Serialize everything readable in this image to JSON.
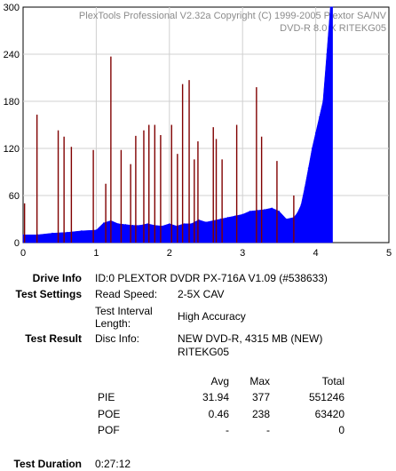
{
  "chart_data": {
    "type": "bar",
    "watermark": [
      "PlexTools Professional V2.32a Copyright (C) 1999-2005 Plextor SA/NV",
      "DVD-R   8.0 X   RITEKG05"
    ],
    "xlim": [
      0,
      5
    ],
    "ylim": [
      0,
      300
    ],
    "x_ticks": [
      "0",
      "1",
      "2",
      "3",
      "4",
      "5"
    ],
    "y_ticks": [
      "0",
      "60",
      "120",
      "180",
      "240",
      "300"
    ],
    "grid": true,
    "series": [
      {
        "color": "#0000ff",
        "x": [
          0.0,
          0.2,
          0.4,
          0.6,
          0.8,
          1.0,
          1.1,
          1.2,
          1.3,
          1.4,
          1.5,
          1.6,
          1.7,
          1.8,
          1.9,
          2.0,
          2.1,
          2.2,
          2.3,
          2.4,
          2.5,
          2.6,
          2.7,
          2.8,
          2.9,
          3.0,
          3.1,
          3.2,
          3.3,
          3.4,
          3.5,
          3.6,
          3.7,
          3.75,
          3.8,
          3.85,
          3.9,
          3.95,
          4.0,
          4.05,
          4.1,
          4.15,
          4.2,
          4.23
        ],
        "y": [
          10,
          10,
          12,
          13,
          15,
          16,
          25,
          28,
          24,
          23,
          22,
          22,
          24,
          22,
          21,
          24,
          21,
          24,
          24,
          29,
          26,
          28,
          30,
          32,
          34,
          36,
          40,
          41,
          42,
          44,
          40,
          30,
          32,
          38,
          48,
          70,
          95,
          120,
          140,
          160,
          180,
          240,
          300,
          300
        ]
      },
      {
        "color": "#800000",
        "x": [
          0.02,
          0.19,
          0.48,
          0.56,
          0.66,
          0.96,
          1.13,
          1.2,
          1.34,
          1.47,
          1.54,
          1.65,
          1.72,
          1.8,
          1.88,
          2.03,
          2.11,
          2.18,
          2.27,
          2.34,
          2.39,
          2.6,
          2.64,
          2.72,
          2.92,
          3.19,
          3.26,
          3.47,
          3.7
        ],
        "y": [
          50,
          163,
          143,
          135,
          122,
          118,
          75,
          237,
          118,
          100,
          136,
          143,
          150,
          150,
          137,
          150,
          113,
          202,
          207,
          106,
          129,
          147,
          132,
          106,
          150,
          198,
          135,
          104,
          60
        ]
      }
    ]
  },
  "report": {
    "drive_info_label": "Drive Info",
    "drive_info_value": "ID:0 PLEXTOR DVDR PX-716A V1.09 (#538633)",
    "test_settings_label": "Test Settings",
    "read_speed_label": "Read Speed:",
    "read_speed_value": "2-5X CAV",
    "interval_label_1": "Test Interval",
    "interval_label_2": "Length:",
    "interval_value": "High Accuracy",
    "test_result_label": "Test Result",
    "disc_info_label": "Disc Info:",
    "disc_info_value_1": "NEW DVD-R, 4315 MB (NEW)",
    "disc_info_value_2": "RITEKG05",
    "stats_headers": [
      "Avg",
      "Max",
      "Total"
    ],
    "stats": [
      {
        "name": "PIE",
        "avg": "31.94",
        "max": "377",
        "total": "551246"
      },
      {
        "name": "POE",
        "avg": "0.46",
        "max": "238",
        "total": "63420"
      },
      {
        "name": "POF",
        "avg": "-",
        "max": "-",
        "total": "0"
      }
    ],
    "test_duration_label": "Test Duration",
    "test_duration_value": "0:27:12"
  }
}
